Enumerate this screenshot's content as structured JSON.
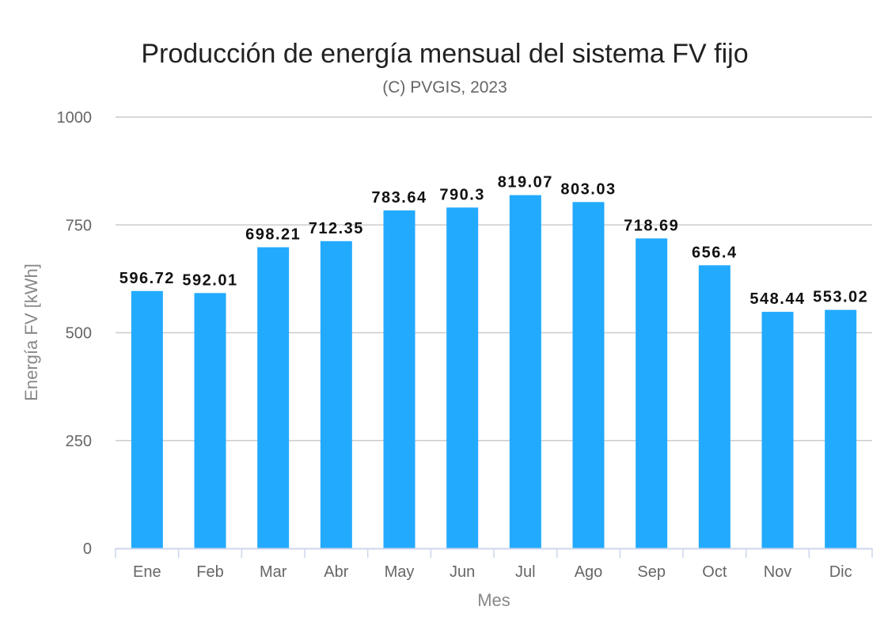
{
  "chart_data": {
    "type": "bar",
    "title": "Producción de energía mensual del sistema FV fijo",
    "subtitle": "(C) PVGIS, 2023",
    "xlabel": "Mes",
    "ylabel": "Energía FV [kWh]",
    "categories": [
      "Ene",
      "Feb",
      "Mar",
      "Abr",
      "May",
      "Jun",
      "Jul",
      "Ago",
      "Sep",
      "Oct",
      "Nov",
      "Dic"
    ],
    "values": [
      596.72,
      592.01,
      698.21,
      712.35,
      783.64,
      790.3,
      819.07,
      803.03,
      718.69,
      656.4,
      548.44,
      553.02
    ],
    "data_labels": [
      "596.72",
      "592.01",
      "698.21",
      "712.35",
      "783.64",
      "790.3",
      "819.07",
      "803.03",
      "718.69",
      "656.4",
      "548.44",
      "553.02"
    ],
    "yticks": [
      "0",
      "250",
      "500",
      "750",
      "1000"
    ],
    "ylim": [
      0,
      1000
    ],
    "grid": true,
    "legend": "none",
    "colors": {
      "bar": "#22aaff",
      "grid": "#cccccc",
      "axis": "#ccd6eb"
    }
  }
}
